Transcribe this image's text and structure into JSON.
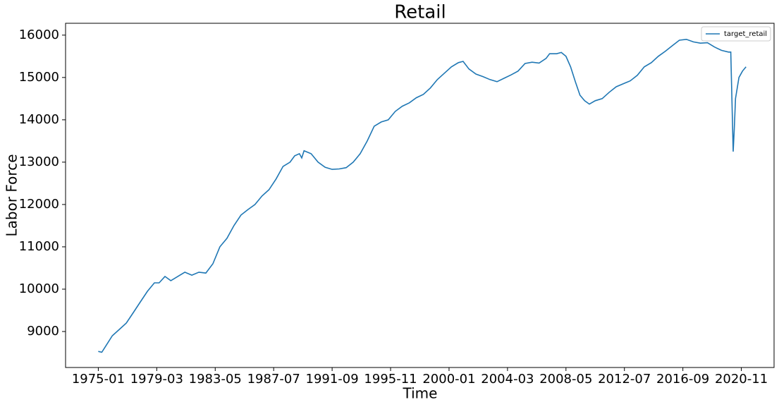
{
  "chart_data": {
    "type": "line",
    "title": "Retail",
    "xlabel": "Time",
    "ylabel": "Labor Force",
    "x": [
      "1975-01",
      "1975-04",
      "1975-07",
      "1976-01",
      "1976-07",
      "1977-01",
      "1977-07",
      "1978-01",
      "1978-07",
      "1979-01",
      "1979-05",
      "1979-10",
      "1980-03",
      "1980-09",
      "1981-03",
      "1981-09",
      "1982-03",
      "1982-09",
      "1983-03",
      "1983-09",
      "1984-03",
      "1984-09",
      "1985-03",
      "1985-09",
      "1986-03",
      "1986-09",
      "1987-03",
      "1987-09",
      "1988-03",
      "1988-09",
      "1989-01",
      "1989-05",
      "1989-07",
      "1989-09",
      "1990-03",
      "1990-09",
      "1991-03",
      "1991-09",
      "1992-03",
      "1992-09",
      "1993-03",
      "1993-09",
      "1994-03",
      "1994-09",
      "1995-03",
      "1995-09",
      "1996-03",
      "1996-09",
      "1997-03",
      "1997-09",
      "1998-03",
      "1998-09",
      "1999-03",
      "1999-09",
      "2000-03",
      "2000-09",
      "2001-01",
      "2001-06",
      "2001-12",
      "2002-06",
      "2002-12",
      "2003-06",
      "2003-12",
      "2004-06",
      "2004-12",
      "2005-06",
      "2005-12",
      "2006-06",
      "2006-12",
      "2007-03",
      "2007-09",
      "2008-01",
      "2008-05",
      "2008-09",
      "2009-01",
      "2009-05",
      "2009-09",
      "2010-01",
      "2010-06",
      "2010-12",
      "2011-06",
      "2011-12",
      "2012-06",
      "2012-12",
      "2013-06",
      "2013-12",
      "2014-06",
      "2014-12",
      "2015-06",
      "2015-12",
      "2016-06",
      "2016-12",
      "2017-06",
      "2017-12",
      "2018-06",
      "2018-12",
      "2019-06",
      "2019-12",
      "2020-02",
      "2020-04",
      "2020-05",
      "2020-06",
      "2020-09",
      "2020-12",
      "2021-03"
    ],
    "series": [
      {
        "name": "target_retail",
        "color": "#1f77b4",
        "values": [
          8530,
          8510,
          8640,
          8900,
          9050,
          9200,
          9450,
          9700,
          9950,
          10150,
          10150,
          10300,
          10200,
          10300,
          10400,
          10330,
          10400,
          10380,
          10600,
          11000,
          11200,
          11500,
          11750,
          11880,
          12000,
          12200,
          12350,
          12600,
          12900,
          13000,
          13150,
          13200,
          13100,
          13270,
          13200,
          13000,
          12880,
          12830,
          12840,
          12870,
          13000,
          13200,
          13500,
          13850,
          13950,
          14000,
          14200,
          14320,
          14400,
          14520,
          14600,
          14750,
          14950,
          15100,
          15250,
          15350,
          15380,
          15200,
          15080,
          15020,
          14950,
          14900,
          14980,
          15060,
          15150,
          15330,
          15360,
          15340,
          15450,
          15560,
          15560,
          15590,
          15500,
          15250,
          14900,
          14580,
          14450,
          14370,
          14450,
          14500,
          14650,
          14780,
          14850,
          14920,
          15050,
          15250,
          15350,
          15500,
          15620,
          15750,
          15880,
          15900,
          15840,
          15810,
          15820,
          15720,
          15640,
          15600,
          15600,
          13250,
          13800,
          14500,
          15000,
          15150,
          15250
        ]
      }
    ],
    "xlim": [
      "1972-09",
      "2023-03"
    ],
    "xticks": [
      "1975-01",
      "1979-03",
      "1983-05",
      "1987-07",
      "1991-09",
      "1995-11",
      "2000-01",
      "2004-03",
      "2008-05",
      "2012-07",
      "2016-09",
      "2020-11"
    ],
    "ylim": [
      8150,
      16280
    ],
    "yticks": [
      9000,
      10000,
      11000,
      12000,
      13000,
      14000,
      15000,
      16000
    ],
    "legend": "upper right"
  }
}
